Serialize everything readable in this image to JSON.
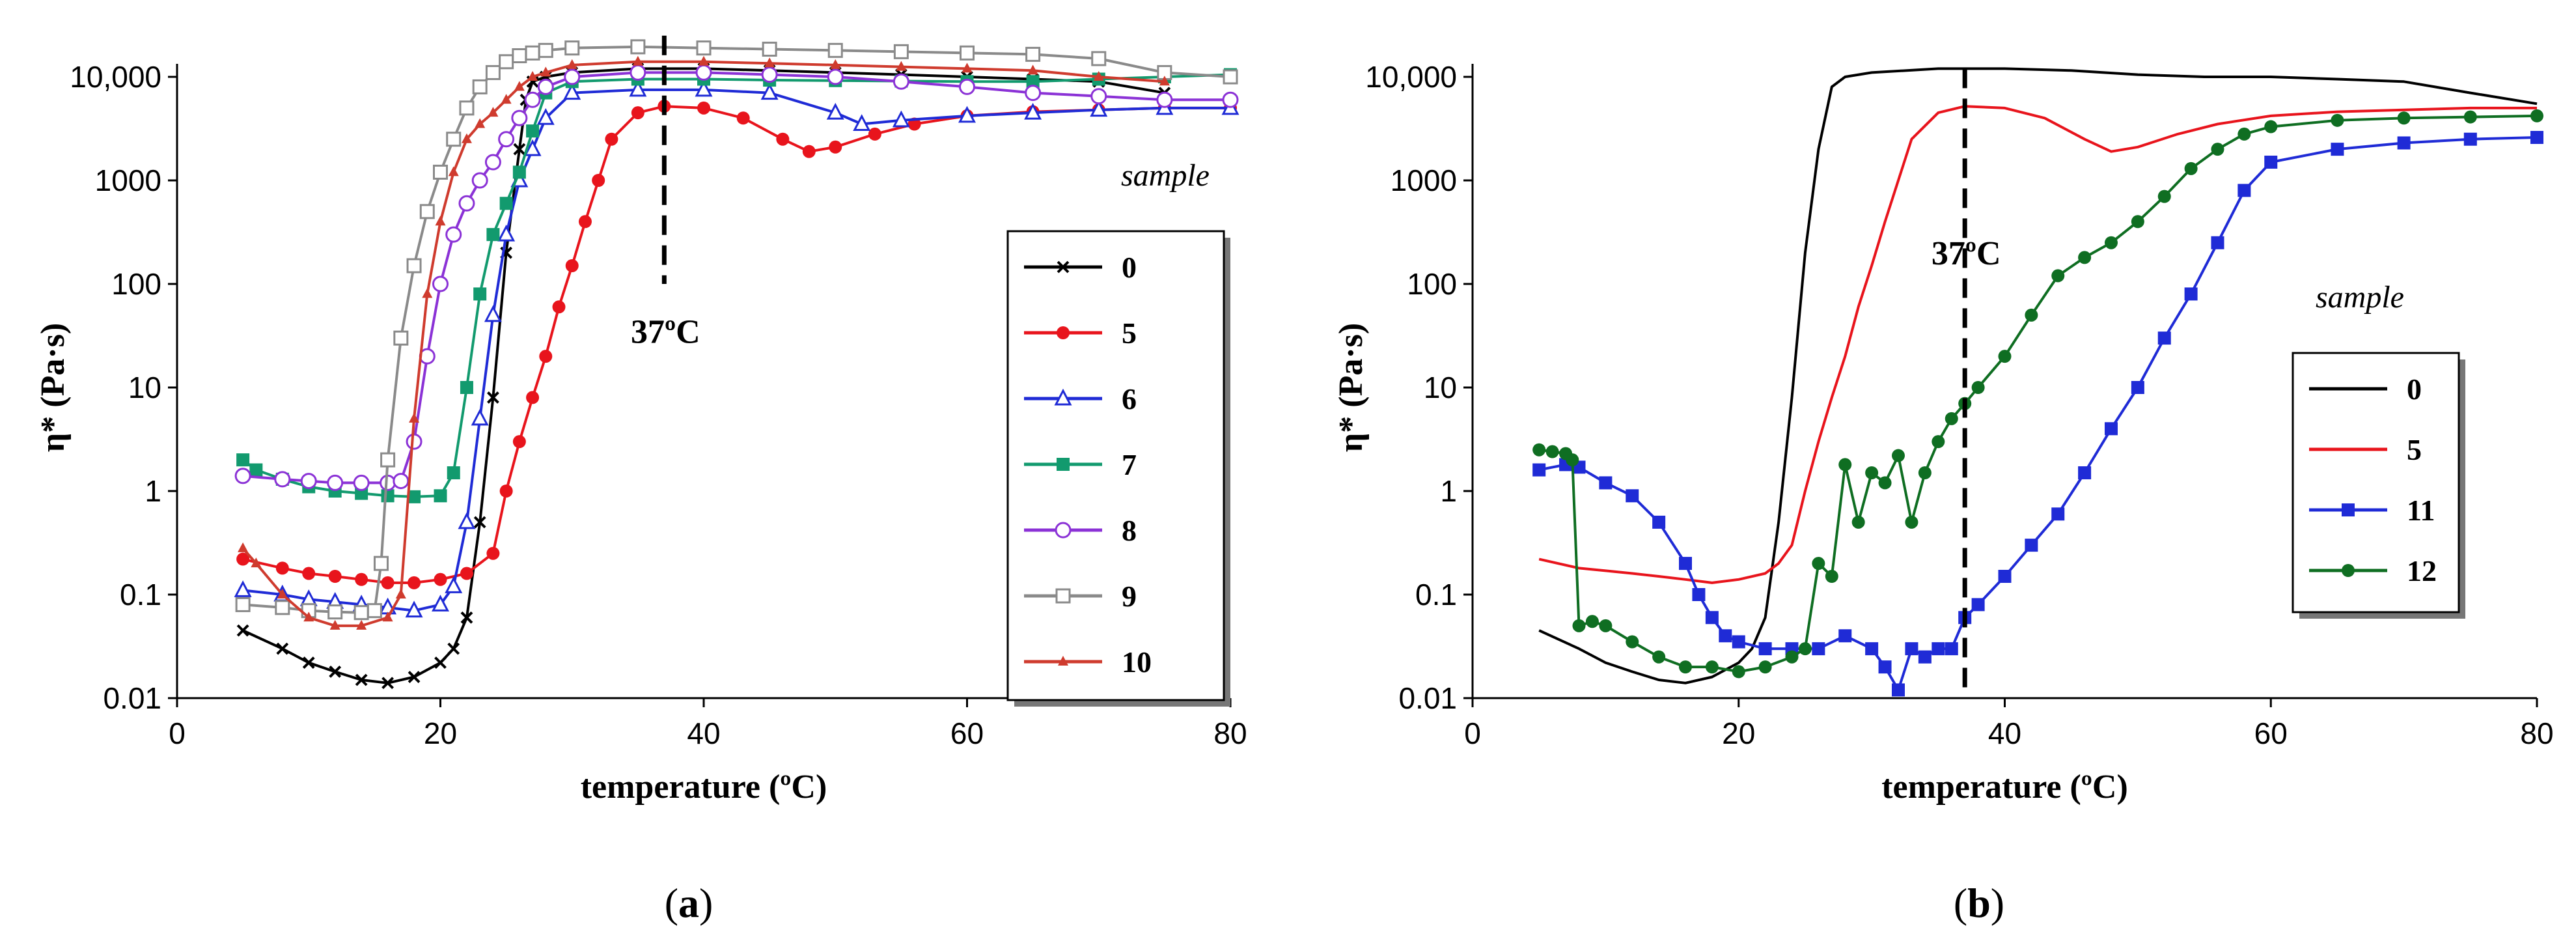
{
  "chart_data": [
    {
      "id": "a",
      "panel_label": "a",
      "type": "line",
      "xlabel": "temperature (ºC)",
      "ylabel": "η* (Pa·s)",
      "xlim": [
        0,
        80
      ],
      "xticks": [
        0,
        20,
        40,
        60,
        80
      ],
      "yscale": "log",
      "ylim": [
        0.01,
        10000
      ],
      "yticks": [
        0.01,
        0.1,
        1,
        10,
        100,
        1000,
        10000
      ],
      "ytick_labels": [
        "0.01",
        "0.1",
        "1",
        "10",
        "100",
        "1000",
        "10,000"
      ],
      "grid": false,
      "legend_title": "sample",
      "legend_position": "right",
      "vline": {
        "x": 37,
        "y_from": 100,
        "y_to": 25000,
        "label": "37ºC",
        "label_y": 35
      },
      "series": [
        {
          "name": "0",
          "color": "#000000",
          "marker": "x",
          "x": [
            5,
            8,
            10,
            12,
            14,
            16,
            18,
            20,
            21,
            22,
            23,
            24,
            25,
            26,
            26.5,
            27,
            28,
            30,
            35,
            40,
            45,
            50,
            55,
            60,
            65,
            70,
            75
          ],
          "y": [
            0.045,
            0.03,
            0.022,
            0.018,
            0.015,
            0.014,
            0.016,
            0.022,
            0.03,
            0.06,
            0.5,
            8,
            200,
            2000,
            6000,
            9000,
            10000,
            11000,
            12000,
            12000,
            11500,
            11000,
            10500,
            10000,
            9500,
            9000,
            7000
          ]
        },
        {
          "name": "5",
          "color": "#e8141c",
          "marker": "dot",
          "x": [
            5,
            8,
            10,
            12,
            14,
            16,
            18,
            20,
            22,
            24,
            25,
            26,
            27,
            28,
            29,
            30,
            31,
            32,
            33,
            35,
            37,
            40,
            43,
            46,
            48,
            50,
            53,
            56,
            60,
            65,
            70,
            75,
            80
          ],
          "y": [
            0.22,
            0.18,
            0.16,
            0.15,
            0.14,
            0.13,
            0.13,
            0.14,
            0.16,
            0.25,
            1,
            3,
            8,
            20,
            60,
            150,
            400,
            1000,
            2500,
            4500,
            5200,
            5000,
            4000,
            2500,
            1900,
            2100,
            2800,
            3500,
            4200,
            4600,
            4800,
            5000,
            5000
          ]
        },
        {
          "name": "6",
          "color": "#1f2bd6",
          "marker": "triangle",
          "x": [
            5,
            8,
            10,
            12,
            14,
            16,
            18,
            20,
            21,
            22,
            23,
            24,
            25,
            26,
            27,
            28,
            30,
            35,
            40,
            45,
            50,
            52,
            55,
            60,
            65,
            70,
            75,
            80
          ],
          "y": [
            0.11,
            0.1,
            0.09,
            0.085,
            0.08,
            0.075,
            0.07,
            0.08,
            0.12,
            0.5,
            5,
            50,
            300,
            1000,
            2000,
            4000,
            7000,
            7500,
            7500,
            7000,
            4500,
            3500,
            3800,
            4200,
            4500,
            4800,
            5000,
            5000
          ]
        },
        {
          "name": "7",
          "color": "#129a6e",
          "marker": "square",
          "x": [
            5,
            6,
            8,
            10,
            12,
            14,
            16,
            18,
            20,
            21,
            22,
            23,
            24,
            25,
            26,
            27,
            28,
            30,
            35,
            40,
            45,
            50,
            55,
            60,
            65,
            70,
            75,
            80
          ],
          "y": [
            2.0,
            1.6,
            1.3,
            1.1,
            1.0,
            0.95,
            0.9,
            0.88,
            0.9,
            1.5,
            10,
            80,
            300,
            600,
            1200,
            3000,
            7000,
            9000,
            9500,
            9500,
            9300,
            9200,
            9100,
            9000,
            9000,
            9500,
            10000,
            10500
          ]
        },
        {
          "name": "8",
          "color": "#8b32d6",
          "marker": "circle",
          "x": [
            5,
            8,
            10,
            12,
            14,
            16,
            17,
            18,
            19,
            20,
            21,
            22,
            23,
            24,
            25,
            26,
            27,
            28,
            30,
            35,
            40,
            45,
            50,
            55,
            60,
            65,
            70,
            75,
            80
          ],
          "y": [
            1.4,
            1.3,
            1.25,
            1.2,
            1.2,
            1.2,
            1.25,
            3,
            20,
            100,
            300,
            600,
            1000,
            1500,
            2500,
            4000,
            6000,
            8000,
            10000,
            11000,
            11000,
            10500,
            10000,
            9000,
            8000,
            7000,
            6500,
            6000,
            6000
          ]
        },
        {
          "name": "9",
          "color": "#8a8a8a",
          "marker": "square-open",
          "x": [
            5,
            8,
            10,
            12,
            14,
            15,
            15.5,
            16,
            17,
            18,
            19,
            20,
            21,
            22,
            23,
            24,
            25,
            26,
            27,
            28,
            30,
            35,
            40,
            45,
            50,
            55,
            60,
            65,
            70,
            75,
            80
          ],
          "y": [
            0.08,
            0.075,
            0.07,
            0.068,
            0.067,
            0.07,
            0.2,
            2,
            30,
            150,
            500,
            1200,
            2500,
            5000,
            8000,
            11000,
            14000,
            16000,
            17000,
            18000,
            19000,
            19500,
            19000,
            18500,
            18000,
            17500,
            17000,
            16500,
            15000,
            11000,
            10000
          ]
        },
        {
          "name": "10",
          "color": "#cf3b2e",
          "marker": "tri-small",
          "x": [
            5,
            6,
            8,
            10,
            12,
            14,
            16,
            17,
            18,
            19,
            20,
            21,
            22,
            23,
            24,
            25,
            26,
            27,
            28,
            30,
            35,
            40,
            45,
            50,
            55,
            60,
            65,
            70,
            75
          ],
          "y": [
            0.28,
            0.2,
            0.1,
            0.06,
            0.05,
            0.05,
            0.06,
            0.1,
            5,
            80,
            400,
            1200,
            2500,
            3500,
            4500,
            6000,
            8000,
            10000,
            11000,
            13000,
            14000,
            14000,
            13500,
            13000,
            12500,
            12000,
            11500,
            10000,
            9000
          ]
        }
      ]
    },
    {
      "id": "b",
      "panel_label": "b",
      "type": "line",
      "xlabel": "temperature (ºC)",
      "ylabel": "η* (Pa·s)",
      "xlim": [
        0,
        80
      ],
      "xticks": [
        0,
        20,
        40,
        60,
        80
      ],
      "yscale": "log",
      "ylim": [
        0.01,
        10000
      ],
      "yticks": [
        0.01,
        0.1,
        1,
        10,
        100,
        1000,
        10000
      ],
      "ytick_labels": [
        "0.01",
        "0.1",
        "1",
        "10",
        "100",
        "1000",
        "10,000"
      ],
      "grid": false,
      "legend_title": "sample",
      "legend_position": "right",
      "vline": {
        "x": 37,
        "y_from": 0.01,
        "y_to": 12000,
        "label": "37ºC",
        "label_y": 200
      },
      "series": [
        {
          "name": "0",
          "color": "#000000",
          "marker": "none",
          "x": [
            5,
            8,
            10,
            12,
            14,
            16,
            18,
            20,
            21,
            22,
            23,
            24,
            25,
            26,
            27,
            28,
            30,
            35,
            40,
            45,
            50,
            55,
            60,
            65,
            70,
            75,
            80
          ],
          "y": [
            0.045,
            0.03,
            0.022,
            0.018,
            0.015,
            0.014,
            0.016,
            0.022,
            0.03,
            0.06,
            0.5,
            8,
            200,
            2000,
            8000,
            10000,
            11000,
            12000,
            12000,
            11500,
            10500,
            10000,
            10000,
            9500,
            9000,
            7000,
            5500
          ]
        },
        {
          "name": "5",
          "color": "#e8141c",
          "marker": "none",
          "x": [
            5,
            8,
            10,
            12,
            14,
            16,
            18,
            20,
            22,
            23,
            24,
            25,
            26,
            27,
            28,
            29,
            30,
            31,
            32,
            33,
            35,
            37,
            40,
            43,
            46,
            48,
            50,
            53,
            56,
            60,
            65,
            70,
            75,
            80
          ],
          "y": [
            0.22,
            0.18,
            0.17,
            0.16,
            0.15,
            0.14,
            0.13,
            0.14,
            0.16,
            0.2,
            0.3,
            1,
            3,
            8,
            20,
            60,
            150,
            400,
            1000,
            2500,
            4500,
            5200,
            5000,
            4000,
            2500,
            1900,
            2100,
            2800,
            3500,
            4200,
            4600,
            4800,
            5000,
            5000
          ]
        },
        {
          "name": "11",
          "color": "#1f2bd6",
          "marker": "square",
          "x": [
            5,
            7,
            8,
            10,
            12,
            14,
            16,
            17,
            18,
            19,
            20,
            22,
            24,
            26,
            28,
            30,
            31,
            32,
            33,
            34,
            35,
            36,
            37,
            38,
            40,
            42,
            44,
            46,
            48,
            50,
            52,
            54,
            56,
            58,
            60,
            65,
            70,
            75,
            80
          ],
          "y": [
            1.6,
            1.8,
            1.7,
            1.2,
            0.9,
            0.5,
            0.2,
            0.1,
            0.06,
            0.04,
            0.035,
            0.03,
            0.03,
            0.03,
            0.04,
            0.03,
            0.02,
            0.012,
            0.03,
            0.025,
            0.03,
            0.03,
            0.06,
            0.08,
            0.15,
            0.3,
            0.6,
            1.5,
            4,
            10,
            30,
            80,
            250,
            800,
            1500,
            2000,
            2300,
            2500,
            2600
          ]
        },
        {
          "name": "12",
          "color": "#0f6e22",
          "marker": "dot",
          "x": [
            5,
            6,
            7,
            7.5,
            8,
            9,
            10,
            12,
            14,
            16,
            18,
            20,
            22,
            24,
            25,
            26,
            27,
            28,
            29,
            30,
            31,
            32,
            33,
            34,
            35,
            36,
            37,
            38,
            40,
            42,
            44,
            46,
            48,
            50,
            52,
            54,
            56,
            58,
            60,
            65,
            70,
            75,
            80
          ],
          "y": [
            2.5,
            2.4,
            2.3,
            2.0,
            0.05,
            0.055,
            0.05,
            0.035,
            0.025,
            0.02,
            0.02,
            0.018,
            0.02,
            0.025,
            0.03,
            0.2,
            0.15,
            1.8,
            0.5,
            1.5,
            1.2,
            2.2,
            0.5,
            1.5,
            3,
            5,
            7,
            10,
            20,
            50,
            120,
            180,
            250,
            400,
            700,
            1300,
            2000,
            2800,
            3300,
            3800,
            4000,
            4100,
            4200
          ]
        }
      ]
    }
  ]
}
